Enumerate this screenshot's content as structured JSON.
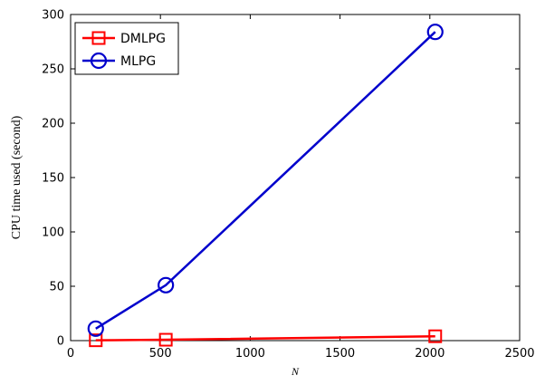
{
  "chart_data": {
    "type": "line",
    "title": "",
    "xlabel": "N",
    "ylabel": "CPU time used (second)",
    "xlim": [
      0,
      2500
    ],
    "ylim": [
      0,
      300
    ],
    "xticks": [
      0,
      500,
      1000,
      1500,
      2000,
      2500
    ],
    "yticks": [
      0,
      50,
      100,
      150,
      200,
      250,
      300
    ],
    "xtick_labels": [
      "0",
      "500",
      "1000",
      "1500",
      "2000",
      "2500"
    ],
    "ytick_labels": [
      "0",
      "50",
      "100",
      "150",
      "200",
      "250",
      "300"
    ],
    "grid": false,
    "legend_position": "top-left",
    "series": [
      {
        "name": "DMLPG",
        "marker": "square",
        "color": "#ff0000",
        "x": [
          140,
          530,
          2030
        ],
        "y": [
          0.3,
          0.8,
          4
        ]
      },
      {
        "name": "MLPG",
        "marker": "circle",
        "color": "#0000cc",
        "x": [
          140,
          530,
          2030
        ],
        "y": [
          11,
          51,
          284
        ]
      }
    ]
  }
}
